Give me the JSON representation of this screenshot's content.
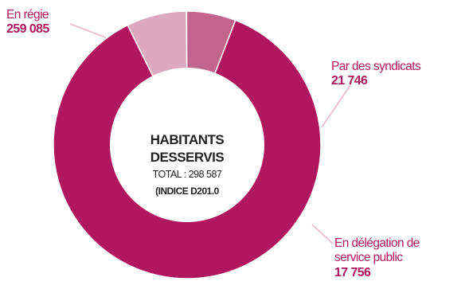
{
  "colors": {
    "regie": "#b0175f",
    "syndicats": "#dca9bf",
    "delegation": "#c2658c",
    "label_name": "#b0175f",
    "label_value": "#b0175f",
    "leader": "#e7c3d3"
  },
  "center": {
    "line1": "HABITANTS",
    "line2": "DESSERVIS",
    "total": "TOTAL : 298 587",
    "indice": "(INDICE D201.0"
  },
  "chart_data": {
    "type": "pie",
    "donut": true,
    "total": 298587,
    "slices": [
      {
        "key": "regie",
        "label": "En régie",
        "value": 259085,
        "value_text": "259 085",
        "color": "#b0175f"
      },
      {
        "key": "syndicats",
        "label": "Par des syndicats",
        "value": 21746,
        "value_text": "21 746",
        "color": "#dca9bf"
      },
      {
        "key": "delegation",
        "label_lines": [
          "En délégation de",
          "service public"
        ],
        "value": 17756,
        "value_text": "17 756",
        "color": "#c2658c"
      }
    ]
  }
}
